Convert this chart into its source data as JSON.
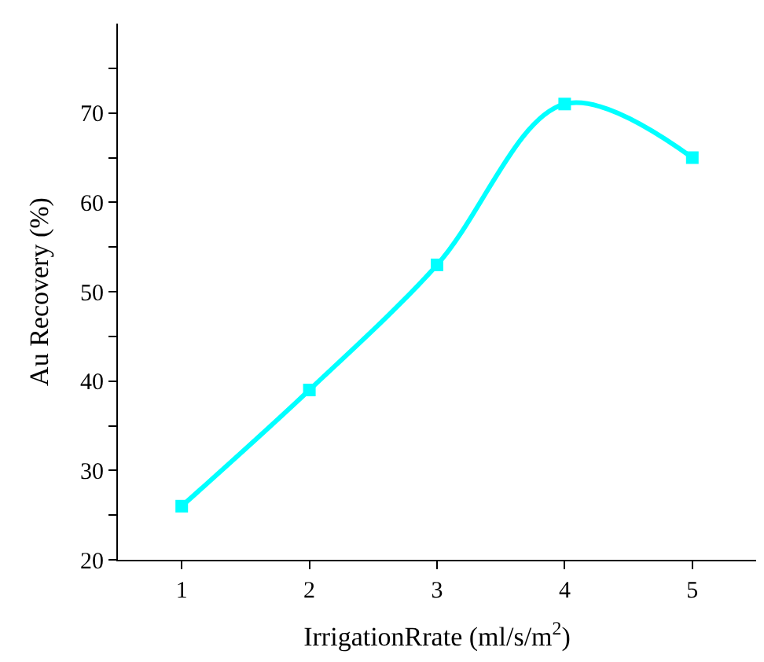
{
  "chart_data": {
    "type": "line",
    "x": [
      1,
      2,
      3,
      4,
      5
    ],
    "series": [
      {
        "color": "#00ffff",
        "values": [
          26,
          39,
          53,
          71,
          65
        ]
      }
    ],
    "xlabel": "IrrigationRrate (ml/s/m$^{2}$)",
    "ylabel": "Au Recovery (%)",
    "xlim": [
      0.5,
      5.5
    ],
    "xticks": [
      1,
      2,
      3,
      4,
      5
    ],
    "ylim": [
      20,
      80
    ],
    "yticks": [
      20,
      {
        "value": 25,
        "label": null
      },
      30,
      {
        "value": 35,
        "label": null
      },
      40,
      {
        "value": 45,
        "label": null
      },
      50,
      {
        "value": 55,
        "label": null
      },
      60,
      {
        "value": 65,
        "label": null
      },
      70,
      {
        "value": 75,
        "label": null
      }
    ],
    "marker": "square",
    "line_style": "solid",
    "legend": false
  }
}
